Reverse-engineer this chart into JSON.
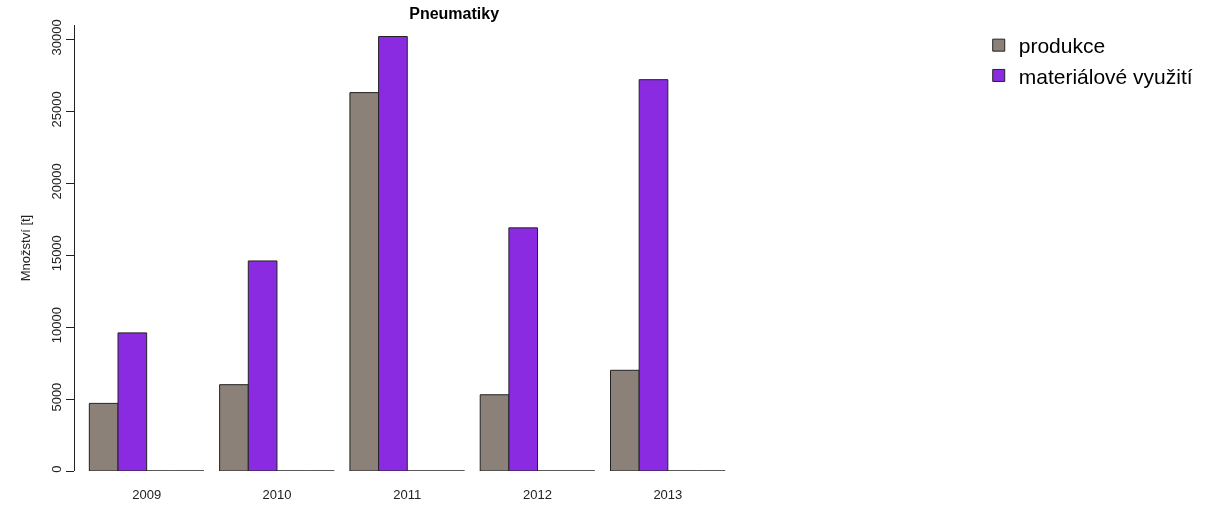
{
  "chart_data": {
    "type": "bar",
    "title": "Pneumatiky",
    "ylabel": "Množství [t]",
    "categories": [
      "2009",
      "2010",
      "2011",
      "2012",
      "2013"
    ],
    "series": [
      {
        "name": "produkce",
        "color": "#8b8178",
        "values": [
          4700,
          6000,
          26300,
          5300,
          7000
        ]
      },
      {
        "name": "materiálové využití",
        "color": "#8a2be2",
        "values": [
          9600,
          14600,
          30200,
          16900,
          27200
        ]
      },
      {
        "color": "#222222",
        "values": [
          0,
          0,
          0,
          0,
          0
        ]
      },
      {
        "color": "#222222",
        "values": [
          0,
          0,
          0,
          0,
          0
        ]
      }
    ],
    "ylim": [
      0,
      31000
    ],
    "yticks": [
      0,
      5000,
      10000,
      15000,
      20000,
      25000,
      30000
    ],
    "legend": "top right"
  }
}
